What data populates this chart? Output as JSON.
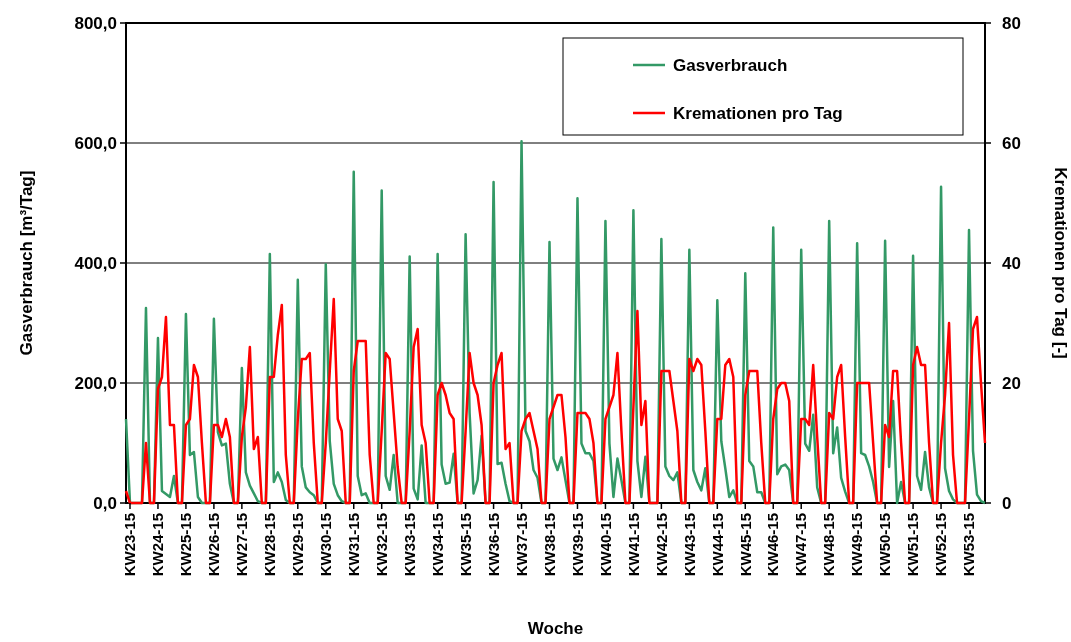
{
  "chart_data": {
    "type": "line",
    "xlabel": "Woche",
    "ylabel": "Gasverbrauch [m³/Tag]",
    "y2label": "Kremationen pro Tag [-]",
    "categories": [
      null,
      "KW23-15",
      null,
      null,
      null,
      null,
      null,
      null,
      "KW24-15",
      null,
      null,
      null,
      null,
      null,
      null,
      "KW25-15",
      null,
      null,
      null,
      null,
      null,
      null,
      "KW26-15",
      null,
      null,
      null,
      null,
      null,
      null,
      "KW27-15",
      null,
      null,
      null,
      null,
      null,
      null,
      "KW28-15",
      null,
      null,
      null,
      null,
      null,
      null,
      "KW29-15",
      null,
      null,
      null,
      null,
      null,
      null,
      "KW30-15",
      null,
      null,
      null,
      null,
      null,
      null,
      "KW31-15",
      null,
      null,
      null,
      null,
      null,
      null,
      "KW32-15",
      null,
      null,
      null,
      null,
      null,
      null,
      "KW33-15",
      null,
      null,
      null,
      null,
      null,
      null,
      "KW34-15",
      null,
      null,
      null,
      null,
      null,
      null,
      "KW35-15",
      null,
      null,
      null,
      null,
      null,
      null,
      "KW36-15",
      null,
      null,
      null,
      null,
      null,
      null,
      "KW37-15",
      null,
      null,
      null,
      null,
      null,
      null,
      "KW38-15",
      null,
      null,
      null,
      null,
      null,
      null,
      "KW39-15",
      null,
      null,
      null,
      null,
      null,
      null,
      "KW40-15",
      null,
      null,
      null,
      null,
      null,
      null,
      "KW41-15",
      null,
      null,
      null,
      null,
      null,
      null,
      "KW42-15",
      null,
      null,
      null,
      null,
      null,
      null,
      "KW43-15",
      null,
      null,
      null,
      null,
      null,
      null,
      "KW44-15",
      null,
      null,
      null,
      null,
      null,
      null,
      "KW45-15",
      null,
      null,
      null,
      null,
      null,
      null,
      "KW46-15",
      null,
      null,
      null,
      null,
      null,
      null,
      "KW47-15",
      null,
      null,
      null,
      null,
      null,
      null,
      "KW48-15",
      null,
      null,
      null,
      null,
      null,
      null,
      "KW49-15",
      null,
      null,
      null,
      null,
      null,
      null,
      "KW50-15",
      null,
      null,
      null,
      null,
      null,
      null,
      "KW51-15",
      null,
      null,
      null,
      null,
      null,
      null,
      "KW52-15",
      null,
      null,
      null,
      null,
      null,
      null,
      "KW53-15",
      null,
      null,
      null,
      null
    ],
    "series": [
      {
        "name": "Gasverbrauch",
        "color": "#339966",
        "values": [
          140,
          0,
          0,
          0,
          0,
          325,
          0,
          0,
          275,
          20,
          15,
          10,
          45,
          0,
          0,
          315,
          80,
          85,
          10,
          0,
          0,
          0,
          307,
          118,
          96,
          99,
          32,
          0,
          0,
          225,
          51,
          29,
          16,
          3,
          0,
          0,
          415,
          35,
          51,
          35,
          5,
          0,
          0,
          372,
          61,
          26,
          18,
          13,
          0,
          0,
          398,
          103,
          32,
          13,
          3,
          0,
          0,
          552,
          45,
          13,
          16,
          0,
          0,
          0,
          521,
          45,
          22,
          80,
          0,
          0,
          0,
          411,
          24,
          6,
          96,
          0,
          0,
          0,
          415,
          64,
          32,
          34,
          82,
          0,
          0,
          448,
          150,
          16,
          38,
          112,
          0,
          0,
          535,
          65,
          67,
          32,
          3,
          0,
          0,
          603,
          120,
          103,
          55,
          42,
          0,
          0,
          435,
          74,
          55,
          76,
          38,
          0,
          0,
          508,
          99,
          83,
          83,
          70,
          0,
          0,
          470,
          99,
          10,
          74,
          38,
          0,
          0,
          488,
          70,
          10,
          77,
          0,
          0,
          0,
          440,
          61,
          45,
          38,
          51,
          0,
          0,
          422,
          55,
          35,
          21,
          58,
          0,
          0,
          338,
          103,
          58,
          10,
          21,
          0,
          0,
          383,
          70,
          61,
          18,
          18,
          0,
          0,
          459,
          48,
          61,
          64,
          55,
          0,
          0,
          422,
          99,
          87,
          147,
          26,
          0,
          0,
          470,
          83,
          126,
          42,
          19,
          0,
          0,
          433,
          83,
          80,
          61,
          35,
          0,
          0,
          437,
          60,
          170,
          0,
          35,
          0,
          0,
          412,
          45,
          22,
          85,
          26,
          0,
          0,
          527,
          58,
          20,
          6,
          0,
          0,
          0,
          455,
          87,
          14,
          3,
          0
        ]
      },
      {
        "name": "Kremationen pro Tag",
        "color": "#ff0000",
        "axis": "y2",
        "values": [
          2,
          0,
          0,
          0,
          0,
          10,
          0,
          0,
          19,
          21,
          31,
          13,
          13,
          0,
          0,
          13,
          14,
          23,
          21,
          10,
          0,
          0,
          13,
          13,
          11,
          14,
          11,
          0,
          0,
          11,
          16,
          26,
          9,
          11,
          0,
          0,
          21,
          21,
          28,
          33,
          8,
          0,
          0,
          14,
          24,
          24,
          25,
          10,
          0,
          0,
          10,
          22,
          34,
          14,
          12,
          0,
          0,
          22,
          27,
          27,
          27,
          8,
          0,
          0,
          12,
          25,
          24,
          15,
          6,
          0,
          0,
          12,
          26,
          29,
          13,
          10,
          0,
          0,
          18,
          20,
          18,
          15,
          14,
          0,
          0,
          12,
          25,
          20,
          18,
          13,
          0,
          0,
          20,
          23,
          25,
          9,
          10,
          0,
          0,
          12,
          14,
          15,
          12,
          9,
          0,
          0,
          14,
          16,
          18,
          18,
          11,
          0,
          0,
          15,
          15,
          15,
          14,
          10,
          0,
          0,
          14,
          16,
          18,
          25,
          12,
          0,
          0,
          16,
          32,
          13,
          17,
          0,
          0,
          0,
          22,
          22,
          22,
          17,
          12,
          0,
          0,
          24,
          22,
          24,
          23,
          12,
          0,
          0,
          14,
          14,
          23,
          24,
          21,
          0,
          0,
          18,
          22,
          22,
          22,
          10,
          0,
          0,
          14,
          19,
          20,
          20,
          17,
          0,
          0,
          14,
          14,
          13,
          23,
          11,
          0,
          0,
          15,
          14,
          21,
          23,
          11,
          0,
          0,
          20,
          20,
          20,
          20,
          10,
          0,
          0,
          13,
          11,
          22,
          22,
          10,
          0,
          0,
          23,
          26,
          23,
          23,
          10,
          0,
          0,
          10,
          18,
          30,
          8,
          0,
          0,
          0,
          14,
          29,
          31,
          20,
          10
        ]
      }
    ],
    "ylim": [
      0,
      800
    ],
    "yticks": [
      {
        "value": 0,
        "label": "0,0"
      },
      {
        "value": 200,
        "label": "200,0"
      },
      {
        "value": 400,
        "label": "400,0"
      },
      {
        "value": 600,
        "label": "600,0"
      },
      {
        "value": 800,
        "label": "800,0"
      }
    ],
    "y2lim": [
      0,
      80
    ],
    "y2ticks": [
      0,
      20,
      40,
      60,
      80
    ],
    "grid": "y",
    "legend": "top right",
    "marker": "none",
    "line_style": "solid"
  }
}
